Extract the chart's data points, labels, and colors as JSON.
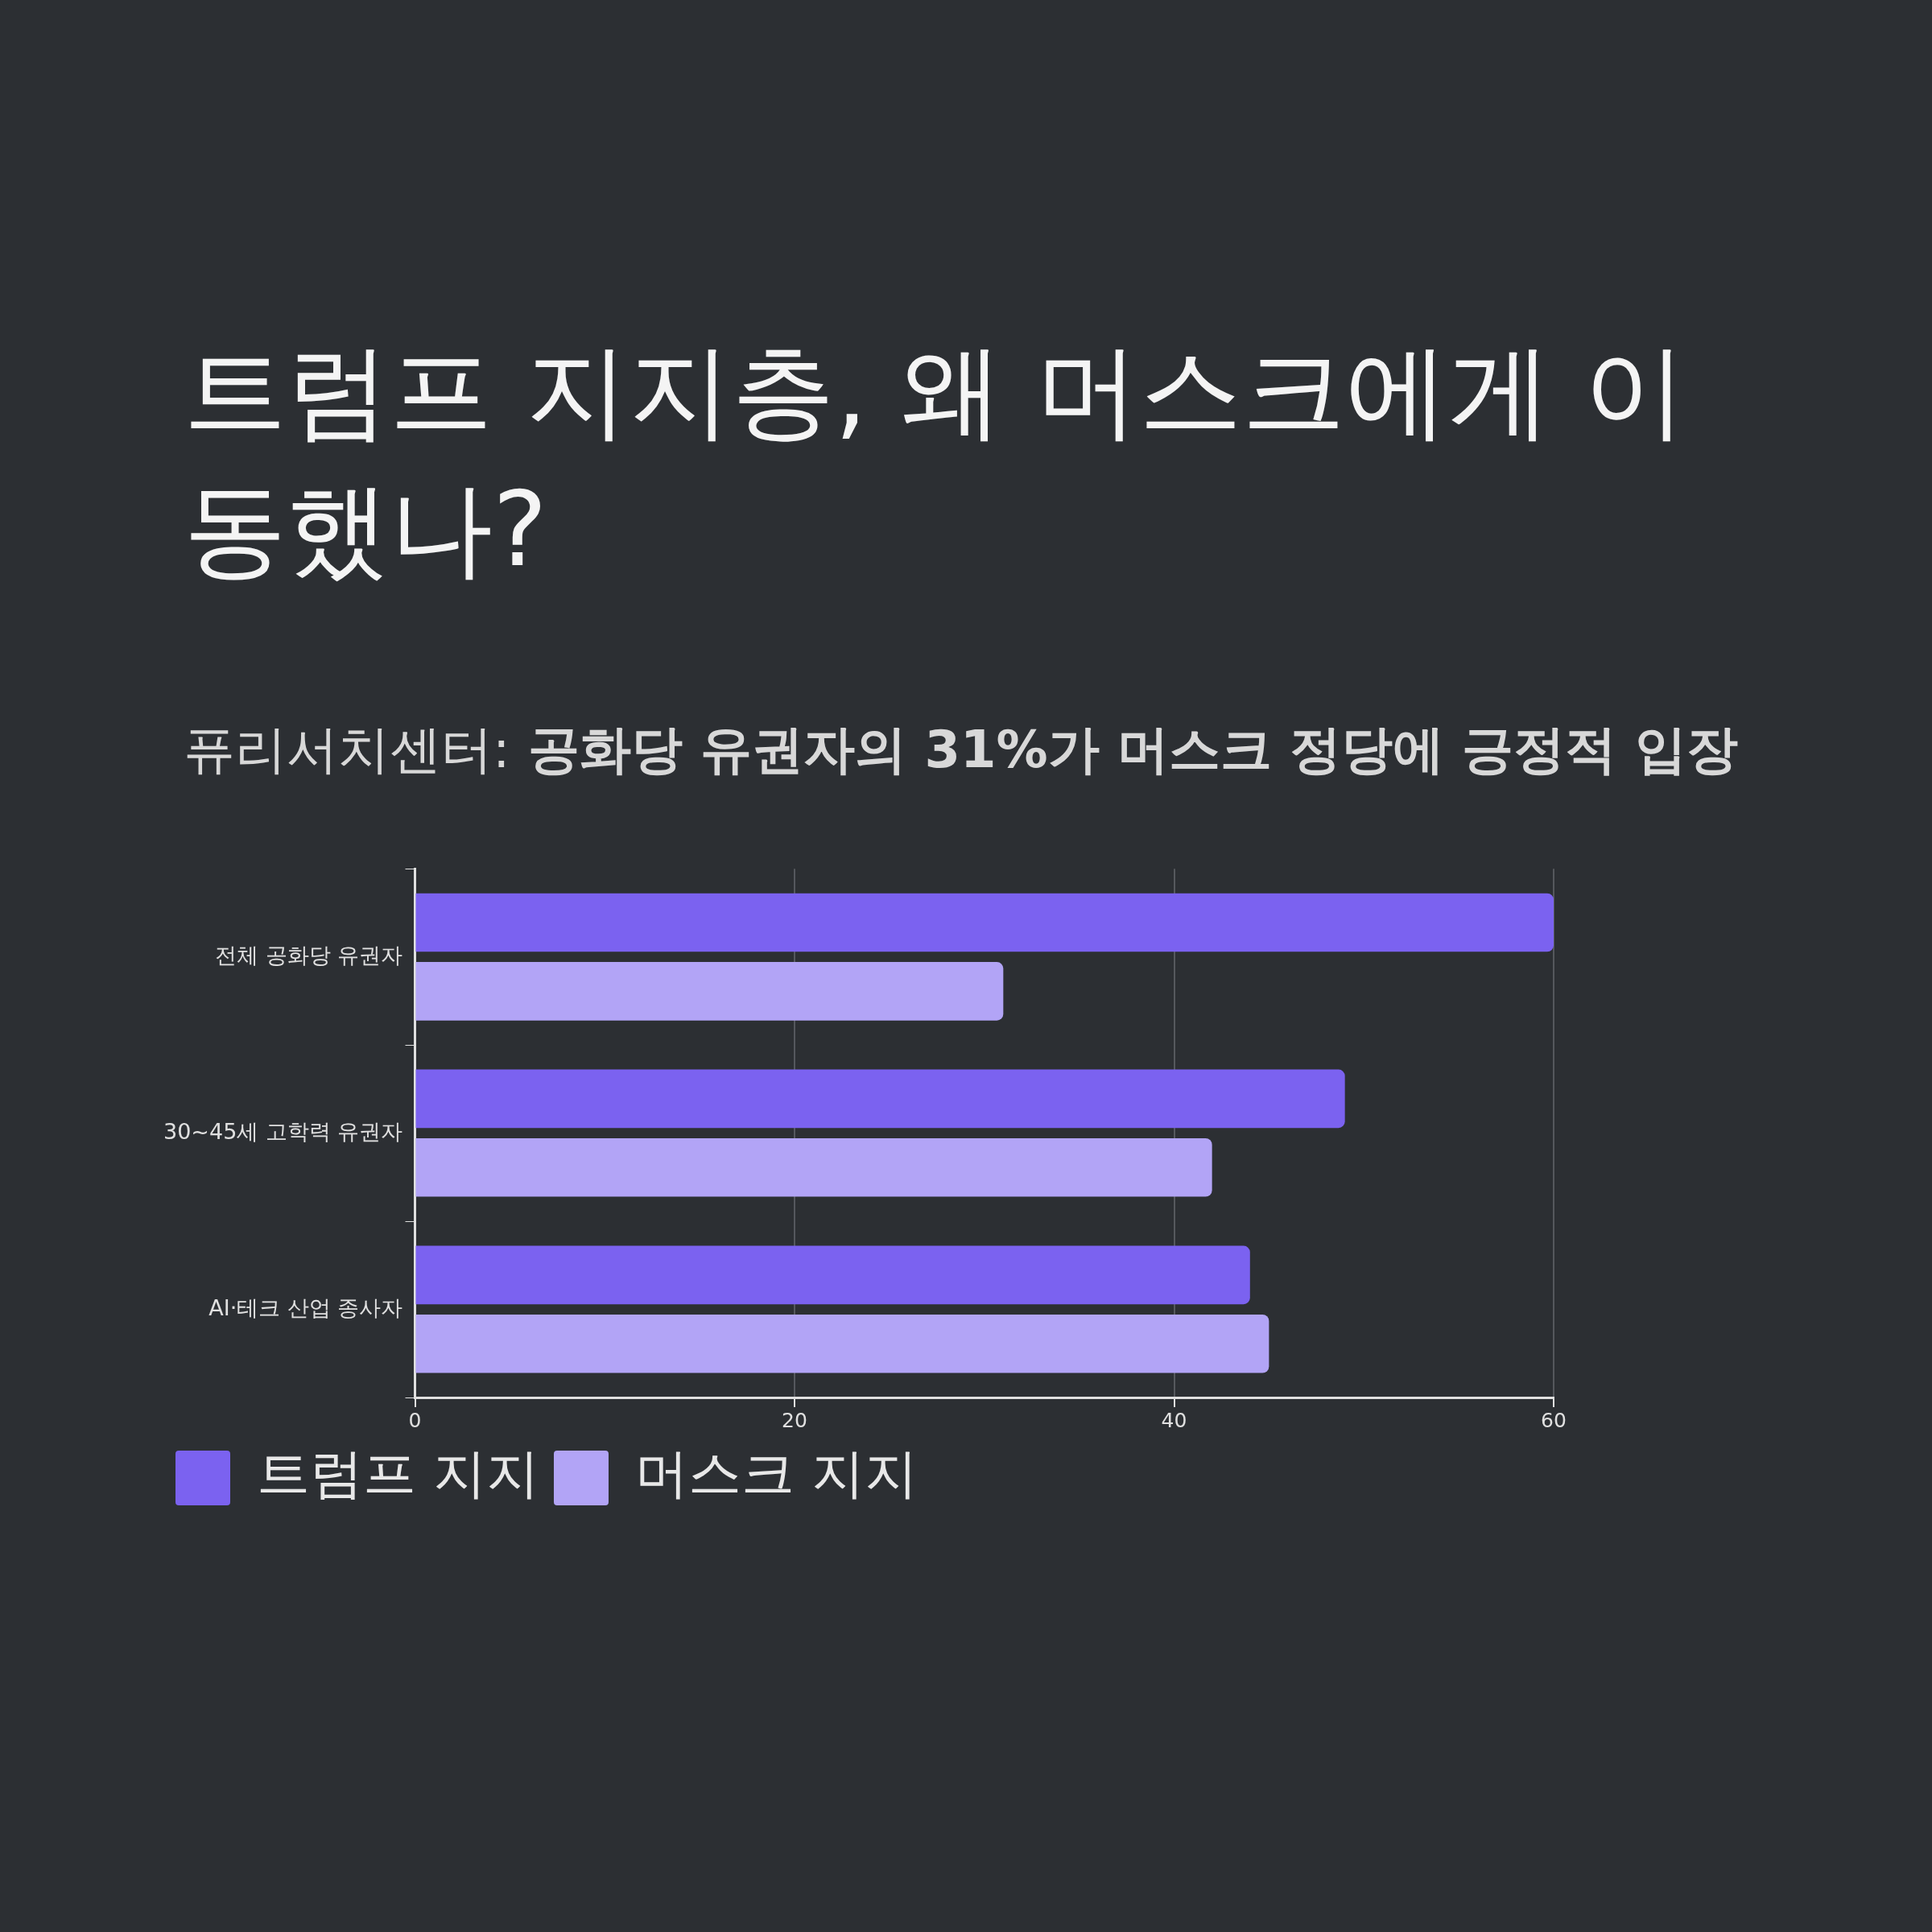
{
  "chart_data": {
    "type": "bar",
    "orientation": "horizontal",
    "title": "트럼프 지지층, 왜 머스크에게 이동했나?",
    "subtitle": "퓨리서치센터: 공화당 유권자의 31%가 머스크 정당에 긍정적 입장",
    "categories": [
      "전체 공화당 유권자",
      "30~45세 고학력 유권자",
      "AI·테크 산업 종사자"
    ],
    "series": [
      {
        "name": "트럼프 지지",
        "color": "#7b62f0",
        "values": [
          60,
          49,
          44
        ]
      },
      {
        "name": "머스크 지지",
        "color": "#b2a4f6",
        "values": [
          31,
          42,
          45
        ]
      }
    ],
    "xlim": [
      0,
      60
    ],
    "xticks": [
      0,
      20,
      40,
      60
    ],
    "grid": "x",
    "legend": "bottom"
  }
}
